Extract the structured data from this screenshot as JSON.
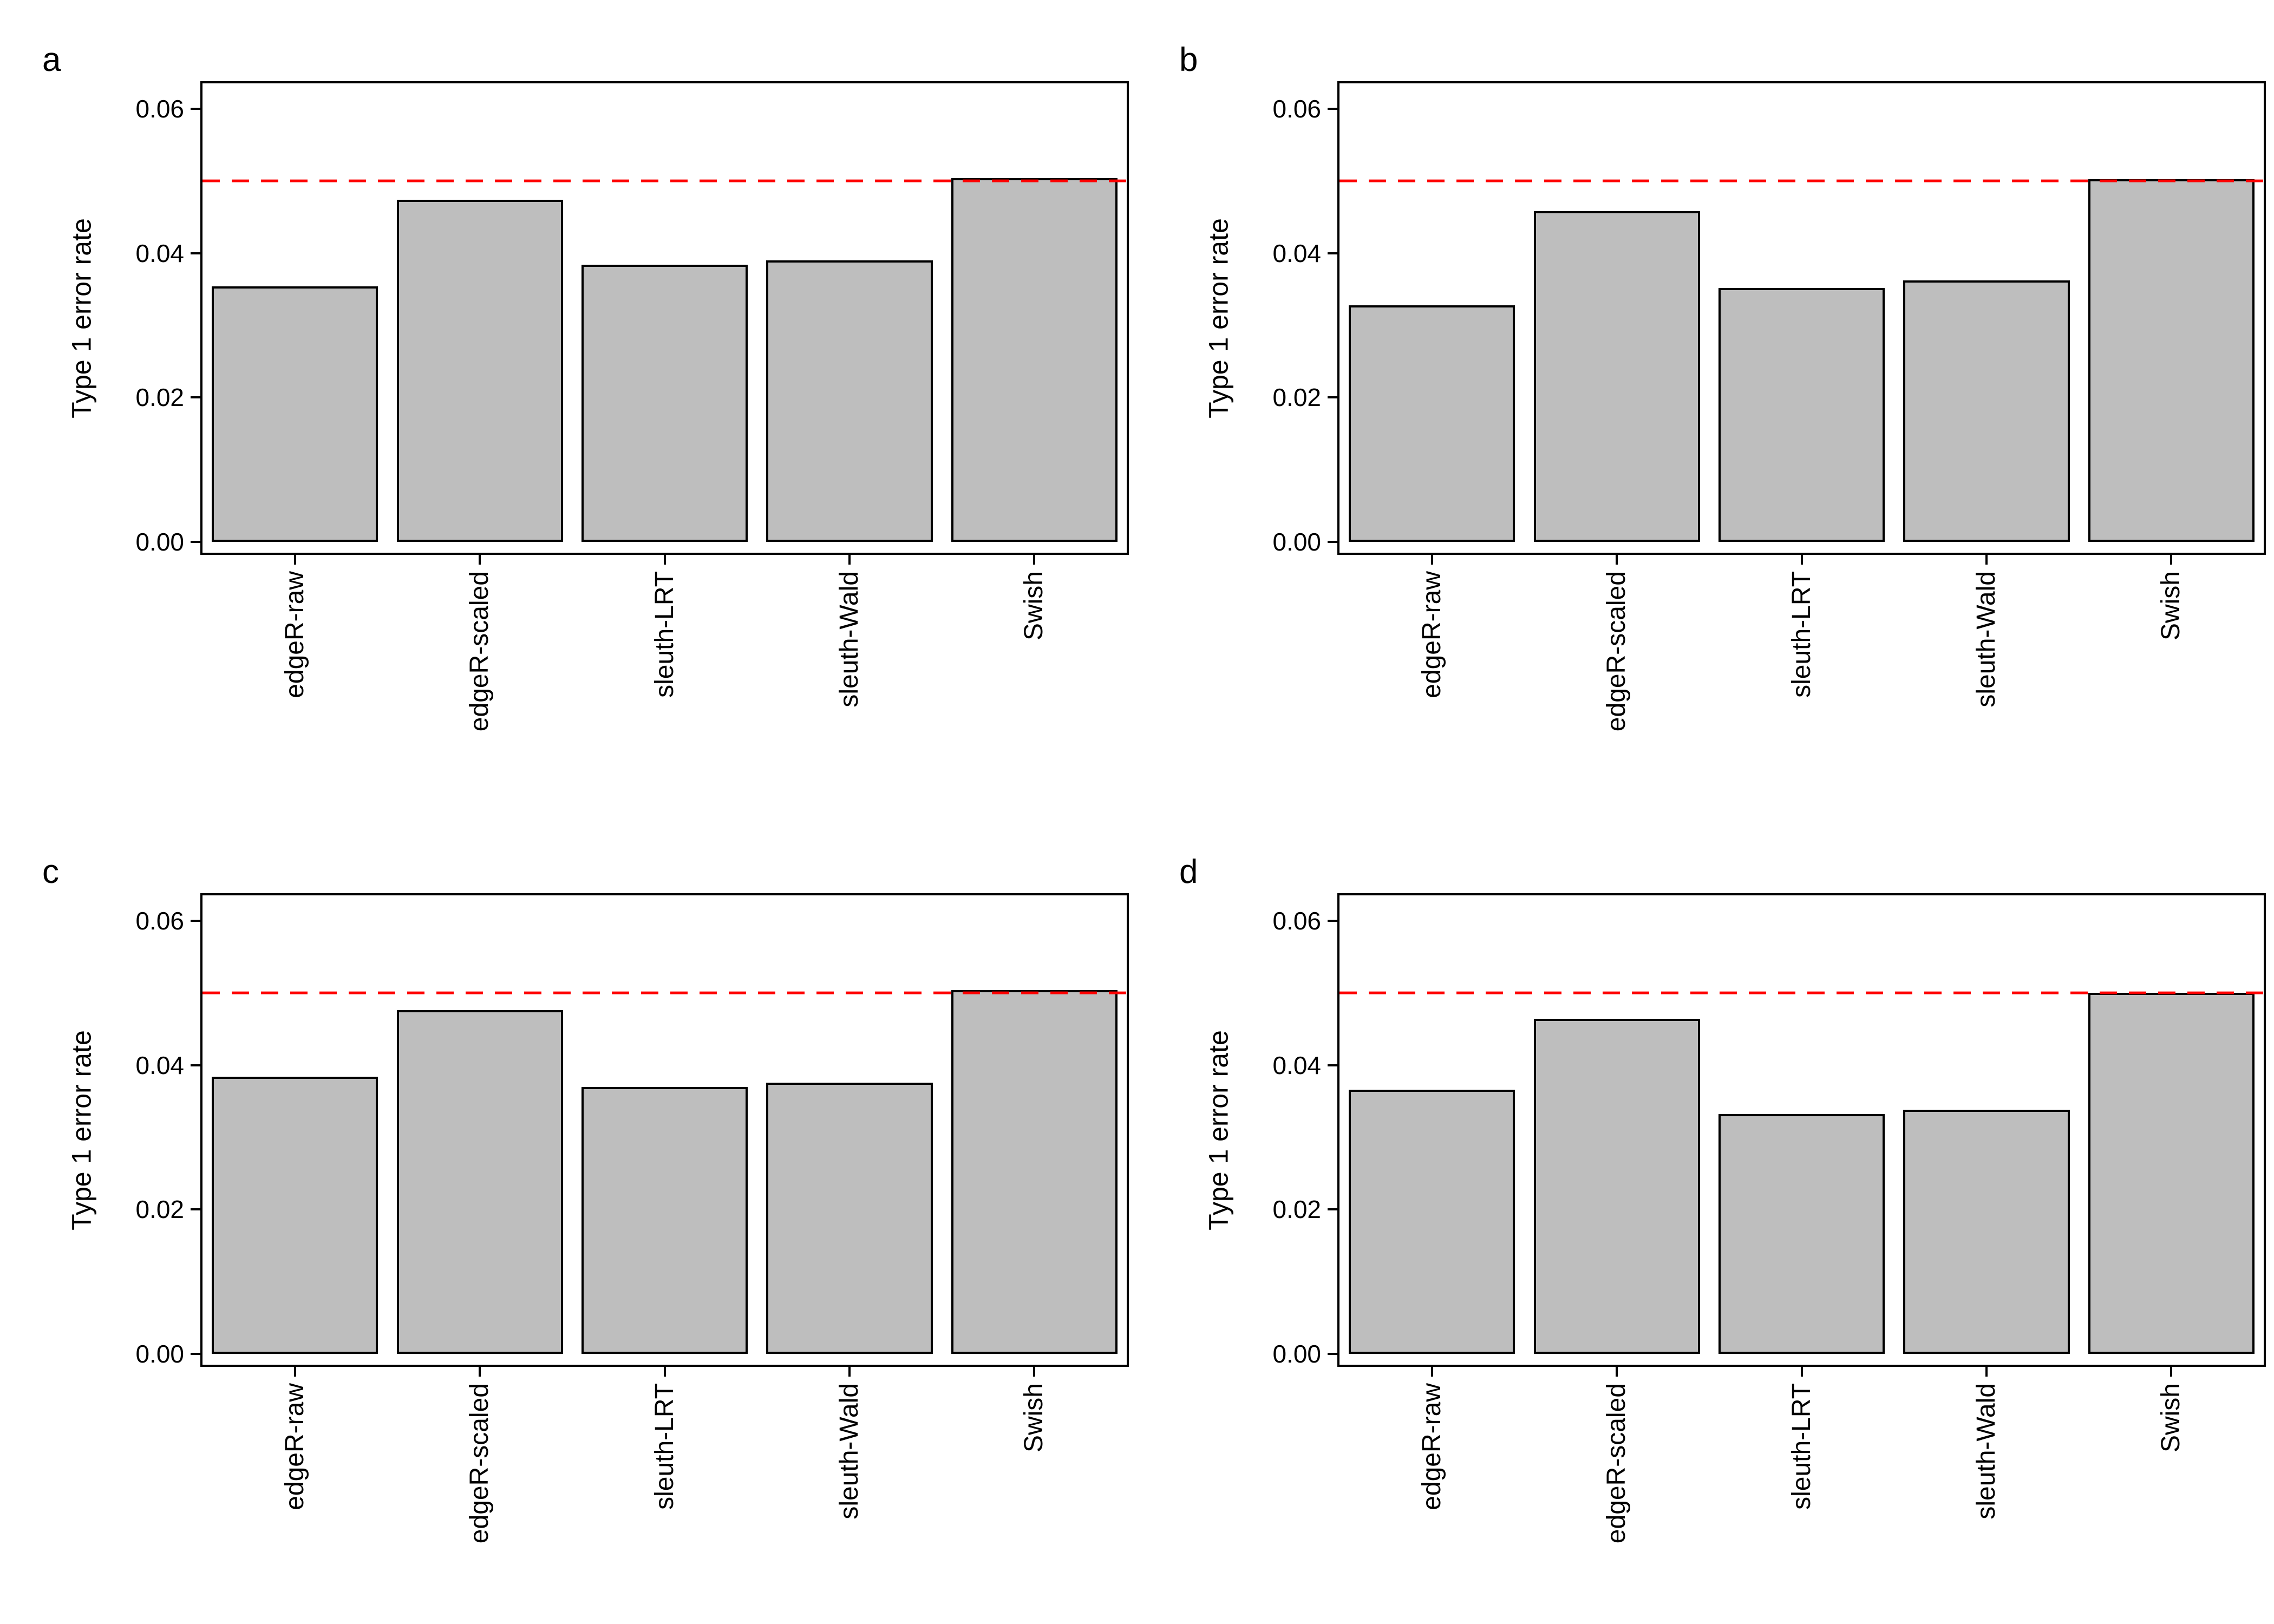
{
  "figure": {
    "background_color": "#FFFFFF",
    "ylabel": "Type 1 error rate",
    "ytick_labels": [
      "0.00",
      "0.02",
      "0.04",
      "0.06"
    ],
    "ytick_values": [
      0,
      0.02,
      0.04,
      0.06
    ],
    "reference_line": {
      "value": 0.05,
      "color": "#FF0000",
      "style": "dashed"
    },
    "bar_fill": "#BEBEBE",
    "bar_stroke": "#000000",
    "panel_border_color": "#000000"
  },
  "chart_data": [
    {
      "type": "bar",
      "tag": "a",
      "ylabel": "Type 1 error rate",
      "ylim": [
        0,
        0.06
      ],
      "grid": false,
      "legend": "none",
      "categories": [
        "edgeR-raw",
        "edgeR-scaled",
        "sleuth-LRT",
        "sleuth-Wald",
        "Swish"
      ],
      "values": [
        0.0354,
        0.0474,
        0.0384,
        0.039,
        0.0504
      ],
      "reference_line": 0.05
    },
    {
      "type": "bar",
      "tag": "b",
      "ylabel": "Type 1 error rate",
      "ylim": [
        0,
        0.06
      ],
      "grid": false,
      "legend": "none",
      "categories": [
        "edgeR-raw",
        "edgeR-scaled",
        "sleuth-LRT",
        "sleuth-Wald",
        "Swish"
      ],
      "values": [
        0.0328,
        0.0458,
        0.0352,
        0.0362,
        0.0502
      ],
      "reference_line": 0.05
    },
    {
      "type": "bar",
      "tag": "c",
      "ylabel": "Type 1 error rate",
      "ylim": [
        0,
        0.06
      ],
      "grid": false,
      "legend": "none",
      "categories": [
        "edgeR-raw",
        "edgeR-scaled",
        "sleuth-LRT",
        "sleuth-Wald",
        "Swish"
      ],
      "values": [
        0.0384,
        0.0476,
        0.037,
        0.0376,
        0.0504
      ],
      "reference_line": 0.05
    },
    {
      "type": "bar",
      "tag": "d",
      "ylabel": "Type 1 error rate",
      "ylim": [
        0,
        0.06
      ],
      "grid": false,
      "legend": "none",
      "categories": [
        "edgeR-raw",
        "edgeR-scaled",
        "sleuth-LRT",
        "sleuth-Wald",
        "Swish"
      ],
      "values": [
        0.0366,
        0.0464,
        0.0332,
        0.0338,
        0.05
      ],
      "reference_line": 0.05
    }
  ]
}
